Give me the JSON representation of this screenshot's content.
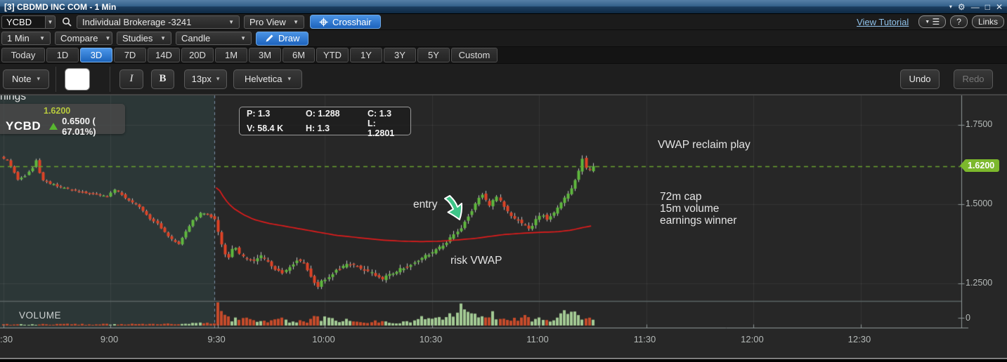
{
  "window": {
    "title": "[3] CBDMD INC COM - 1 Min"
  },
  "toolbar": {
    "symbol": "YCBD",
    "account": "Individual Brokerage -3241",
    "view_mode": "Pro View",
    "crosshair": "Crosshair",
    "tutorial_link": "View Tutorial",
    "help": "?",
    "links": "Links",
    "interval": "1 Min",
    "compare": "Compare",
    "studies": "Studies",
    "chart_type": "Candle",
    "draw": "Draw"
  },
  "range_tabs": {
    "items": [
      "Today",
      "1D",
      "3D",
      "7D",
      "14D",
      "20D",
      "1M",
      "3M",
      "6M",
      "YTD",
      "1Y",
      "3Y",
      "5Y",
      "Custom"
    ],
    "selected": "3D"
  },
  "draw_toolbar": {
    "note": "Note",
    "italic": "I",
    "bold": "B",
    "font_size": "13px",
    "font_name": "Helvetica",
    "undo": "Undo",
    "redo": "Redo"
  },
  "quote": {
    "symbol": "YCBD",
    "last": "1.6200",
    "change": "0.6500 ( 67.01%)"
  },
  "hover_tooltip": {
    "p": "P: 1.3",
    "o": "O: 1.288",
    "c": "C: 1.3",
    "v": "V: 58.4 K",
    "h": "H: 1.3",
    "l": "L: 1.2801"
  },
  "annotations": {
    "clipped_fragment": "nings",
    "headline": "VWAP reclaim play",
    "entry": "entry",
    "notes": [
      "72m cap",
      "15m volume",
      "earnings winner"
    ],
    "risk": "risk VWAP"
  },
  "volume_pane": {
    "label": "VOLUME"
  },
  "axes": {
    "price_tag": "1.6200",
    "price_ticks": [
      {
        "label": "1.7500",
        "value": 1.75
      },
      {
        "label": "1.5000",
        "value": 1.5
      },
      {
        "label": "1.2500",
        "value": 1.25
      }
    ],
    "volume_zero_label": "0",
    "time_labels": [
      {
        "label": ":30",
        "minute": 0
      },
      {
        "label": "9:00",
        "minute": 30
      },
      {
        "label": "9:30",
        "minute": 60
      },
      {
        "label": "10:00",
        "minute": 90
      },
      {
        "label": "10:30",
        "minute": 120
      },
      {
        "label": "11:00",
        "minute": 150
      },
      {
        "label": "11:30",
        "minute": 180
      },
      {
        "label": "12:00",
        "minute": 210
      },
      {
        "label": "12:30",
        "minute": 240
      }
    ]
  },
  "chart_data": {
    "type": "candlestick",
    "symbol": "YCBD",
    "interval_minutes": 1,
    "start_time": "8:30",
    "candle_count": 166,
    "last_price": 1.62,
    "session_open_minute": 59,
    "overlays": [
      "VWAP"
    ],
    "y_axis": {
      "ticks": [
        1.75,
        1.5,
        1.25
      ],
      "price_line": 1.62
    },
    "price_path": [
      [
        0,
        1.648
      ],
      [
        2,
        1.637
      ],
      [
        4,
        1.6
      ],
      [
        5,
        1.578
      ],
      [
        7,
        1.59
      ],
      [
        9,
        1.615
      ],
      [
        10,
        1.638
      ],
      [
        11,
        1.6
      ],
      [
        12,
        1.575
      ],
      [
        14,
        1.565
      ],
      [
        18,
        1.55
      ],
      [
        22,
        1.54
      ],
      [
        26,
        1.533
      ],
      [
        30,
        1.525
      ],
      [
        32,
        1.545
      ],
      [
        34,
        1.53
      ],
      [
        36,
        1.51
      ],
      [
        38,
        1.5
      ],
      [
        40,
        1.48
      ],
      [
        42,
        1.455
      ],
      [
        44,
        1.44
      ],
      [
        46,
        1.41
      ],
      [
        48,
        1.388
      ],
      [
        50,
        1.375
      ],
      [
        52,
        1.415
      ],
      [
        54,
        1.448
      ],
      [
        56,
        1.472
      ],
      [
        58,
        1.468
      ],
      [
        60,
        1.45
      ],
      [
        61,
        1.41
      ],
      [
        62,
        1.375
      ],
      [
        63,
        1.34
      ],
      [
        64,
        1.332
      ],
      [
        65,
        1.355
      ],
      [
        66,
        1.36
      ],
      [
        67,
        1.34
      ],
      [
        69,
        1.326
      ],
      [
        71,
        1.318
      ],
      [
        73,
        1.335
      ],
      [
        75,
        1.318
      ],
      [
        77,
        1.295
      ],
      [
        79,
        1.283
      ],
      [
        81,
        1.3
      ],
      [
        83,
        1.322
      ],
      [
        85,
        1.318
      ],
      [
        86,
        1.295
      ],
      [
        87,
        1.27
      ],
      [
        88,
        1.253
      ],
      [
        89,
        1.243
      ],
      [
        90,
        1.255
      ],
      [
        92,
        1.272
      ],
      [
        94,
        1.292
      ],
      [
        96,
        1.303
      ],
      [
        98,
        1.312
      ],
      [
        100,
        1.303
      ],
      [
        102,
        1.292
      ],
      [
        104,
        1.282
      ],
      [
        106,
        1.272
      ],
      [
        107,
        1.262
      ],
      [
        108,
        1.272
      ],
      [
        110,
        1.282
      ],
      [
        112,
        1.295
      ],
      [
        114,
        1.305
      ],
      [
        116,
        1.318
      ],
      [
        118,
        1.33
      ],
      [
        120,
        1.342
      ],
      [
        122,
        1.355
      ],
      [
        124,
        1.372
      ],
      [
        126,
        1.392
      ],
      [
        128,
        1.412
      ],
      [
        129,
        1.425
      ],
      [
        130,
        1.445
      ],
      [
        131,
        1.462
      ],
      [
        132,
        1.482
      ],
      [
        133,
        1.502
      ],
      [
        134,
        1.518
      ],
      [
        135,
        1.53
      ],
      [
        136,
        1.512
      ],
      [
        137,
        1.495
      ],
      [
        138,
        1.512
      ],
      [
        139,
        1.525
      ],
      [
        140,
        1.508
      ],
      [
        141,
        1.492
      ],
      [
        142,
        1.475
      ],
      [
        143,
        1.462
      ],
      [
        145,
        1.448
      ],
      [
        147,
        1.432
      ],
      [
        148,
        1.422
      ],
      [
        149,
        1.435
      ],
      [
        150,
        1.452
      ],
      [
        151,
        1.462
      ],
      [
        152,
        1.468
      ],
      [
        153,
        1.455
      ],
      [
        154,
        1.462
      ],
      [
        155,
        1.472
      ],
      [
        156,
        1.488
      ],
      [
        157,
        1.502
      ],
      [
        158,
        1.518
      ],
      [
        159,
        1.535
      ],
      [
        160,
        1.552
      ],
      [
        161,
        1.575
      ],
      [
        162,
        1.605
      ],
      [
        163,
        1.645
      ],
      [
        164,
        1.612
      ],
      [
        165,
        1.607
      ],
      [
        166,
        1.62
      ]
    ],
    "vwap_path": [
      [
        60,
        1.552
      ],
      [
        62,
        1.515
      ],
      [
        64,
        1.49
      ],
      [
        67,
        1.468
      ],
      [
        70,
        1.452
      ],
      [
        74,
        1.44
      ],
      [
        78,
        1.432
      ],
      [
        83,
        1.422
      ],
      [
        88,
        1.412
      ],
      [
        93,
        1.402
      ],
      [
        98,
        1.396
      ],
      [
        103,
        1.39
      ],
      [
        107,
        1.386
      ],
      [
        112,
        1.383
      ],
      [
        117,
        1.382
      ],
      [
        122,
        1.383
      ],
      [
        127,
        1.387
      ],
      [
        132,
        1.392
      ],
      [
        136,
        1.398
      ],
      [
        140,
        1.404
      ],
      [
        145,
        1.408
      ],
      [
        150,
        1.411
      ],
      [
        155,
        1.413
      ],
      [
        159,
        1.418
      ],
      [
        162,
        1.426
      ],
      [
        165,
        1.432
      ]
    ],
    "volume_profile": [
      [
        0,
        0.05
      ],
      [
        8,
        0.04
      ],
      [
        16,
        0.06
      ],
      [
        24,
        0.05
      ],
      [
        32,
        0.06
      ],
      [
        40,
        0.05
      ],
      [
        48,
        0.07
      ],
      [
        54,
        0.09
      ],
      [
        58,
        0.1
      ],
      [
        59,
        0.14
      ],
      [
        60,
        1.0
      ],
      [
        61,
        0.52
      ],
      [
        62,
        0.4
      ],
      [
        64,
        0.3
      ],
      [
        66,
        0.25
      ],
      [
        68,
        0.3
      ],
      [
        70,
        0.22
      ],
      [
        73,
        0.18
      ],
      [
        76,
        0.27
      ],
      [
        79,
        0.22
      ],
      [
        82,
        0.17
      ],
      [
        85,
        0.16
      ],
      [
        87,
        0.3
      ],
      [
        88,
        0.38
      ],
      [
        90,
        0.28
      ],
      [
        93,
        0.2
      ],
      [
        96,
        0.23
      ],
      [
        99,
        0.16
      ],
      [
        102,
        0.13
      ],
      [
        105,
        0.17
      ],
      [
        108,
        0.15
      ],
      [
        111,
        0.14
      ],
      [
        114,
        0.2
      ],
      [
        117,
        0.3
      ],
      [
        119,
        0.38
      ],
      [
        121,
        0.32
      ],
      [
        123,
        0.45
      ],
      [
        125,
        0.38
      ],
      [
        127,
        0.6
      ],
      [
        128,
        0.95
      ],
      [
        129,
        0.6
      ],
      [
        131,
        0.48
      ],
      [
        133,
        0.4
      ],
      [
        135,
        0.52
      ],
      [
        137,
        0.45
      ],
      [
        139,
        0.36
      ],
      [
        141,
        0.3
      ],
      [
        143,
        0.34
      ],
      [
        145,
        0.4
      ],
      [
        147,
        0.3
      ],
      [
        149,
        0.24
      ],
      [
        151,
        0.3
      ],
      [
        153,
        0.22
      ],
      [
        155,
        0.32
      ],
      [
        157,
        0.48
      ],
      [
        158,
        0.65
      ],
      [
        159,
        0.52
      ],
      [
        160,
        0.45
      ],
      [
        162,
        0.36
      ],
      [
        164,
        0.3
      ],
      [
        165,
        0.22
      ]
    ]
  },
  "colors": {
    "up": "#5fb83e",
    "down": "#dd4326",
    "up_vol": "#a3ca94",
    "down_vol": "#c54b2b",
    "vwap": "#e01c1c",
    "price_line": "#6aa32f",
    "session_line": "#7b90a8",
    "tag_bg": "#7cb82c",
    "accent": "#2e7fd6",
    "premarket_bg": "#2c3737",
    "chart_bg": "#272727",
    "entry_arrow": "#3ec488"
  }
}
